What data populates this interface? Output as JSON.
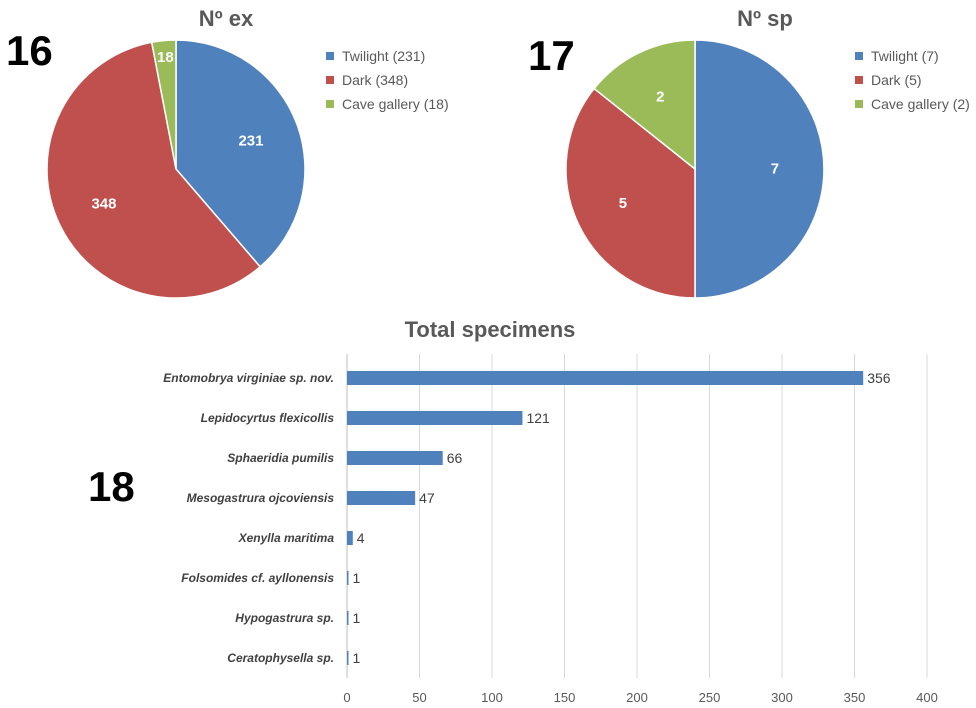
{
  "figure_labels": {
    "left_pie": "16",
    "right_pie": "17",
    "bar": "18"
  },
  "colors": {
    "twilight": "#4f81bd",
    "dark": "#c0504d",
    "cave_gallery": "#9bbb59",
    "bar": "#4f81bd",
    "text": "#595959",
    "grid": "#d9d9d9"
  },
  "chart_data": [
    {
      "type": "pie",
      "title": "Nº ex",
      "slices": [
        {
          "label": "Twilight",
          "value": 231,
          "legend": "Twilight (231)",
          "color": "#4f81bd"
        },
        {
          "label": "Dark",
          "value": 348,
          "legend": "Dark (348)",
          "color": "#c0504d"
        },
        {
          "label": "Cave gallery",
          "value": 18,
          "legend": "Cave gallery (18)",
          "color": "#9bbb59"
        }
      ],
      "legend_position": "right"
    },
    {
      "type": "pie",
      "title": "Nº sp",
      "slices": [
        {
          "label": "Twilight",
          "value": 7,
          "legend": "Twilight (7)",
          "color": "#4f81bd"
        },
        {
          "label": "Dark",
          "value": 5,
          "legend": "Dark (5)",
          "color": "#c0504d"
        },
        {
          "label": "Cave gallery",
          "value": 2,
          "legend": "Cave gallery (2)",
          "color": "#9bbb59"
        }
      ],
      "legend_position": "right"
    },
    {
      "type": "bar",
      "orientation": "horizontal",
      "title": "Total specimens",
      "categories": [
        "Entomobrya virginiae sp. nov.",
        "Lepidocyrtus flexicollis",
        "Sphaeridia pumilis",
        "Mesogastrura ojcoviensis",
        "Xenylla maritima",
        "Folsomides cf. ayllonensis",
        "Hypogastrura sp.",
        "Ceratophysella sp."
      ],
      "values": [
        356,
        121,
        66,
        47,
        4,
        1,
        1,
        1
      ],
      "xlim": [
        0,
        400
      ],
      "xticks": [
        0,
        50,
        100,
        150,
        200,
        250,
        300,
        350,
        400
      ],
      "grid": true,
      "data_labels": true
    }
  ]
}
